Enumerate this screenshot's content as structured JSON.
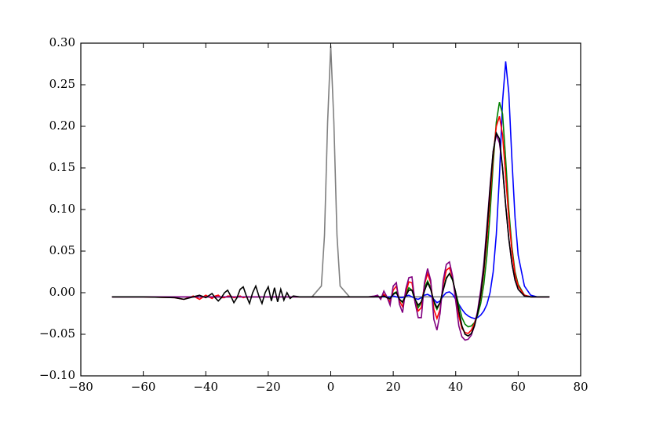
{
  "chart_data": {
    "type": "line",
    "x": [
      -70,
      -60,
      -50,
      -47,
      -44,
      -42,
      -40,
      -38,
      -37,
      -36,
      -35,
      -34,
      -33,
      -32,
      -31,
      -30,
      -29,
      -28,
      -27,
      -26,
      -25,
      -24,
      -23,
      -22,
      -21,
      -20,
      -19,
      -18,
      -17,
      -16,
      -15,
      -14,
      -13,
      -12,
      -10,
      -6,
      -3,
      -2,
      -1,
      0,
      1,
      2,
      3,
      6,
      10,
      12,
      14,
      15,
      16,
      17,
      18,
      19,
      20,
      21,
      22,
      23,
      24,
      25,
      26,
      27,
      28,
      29,
      30,
      31,
      32,
      33,
      34,
      35,
      36,
      37,
      38,
      39,
      40,
      41,
      42,
      43,
      44,
      45,
      46,
      47,
      48,
      49,
      50,
      51,
      52,
      53,
      54,
      55,
      56,
      57,
      58,
      59,
      60,
      62,
      64,
      66,
      70
    ],
    "series": [
      {
        "color": "#808080",
        "values": [
          -0.005,
          -0.005,
          -0.005,
          -0.005,
          -0.005,
          -0.005,
          -0.005,
          -0.005,
          -0.005,
          -0.005,
          -0.005,
          -0.005,
          -0.005,
          -0.005,
          -0.005,
          -0.005,
          -0.005,
          -0.005,
          -0.005,
          -0.005,
          -0.005,
          -0.005,
          -0.005,
          -0.005,
          -0.005,
          -0.005,
          -0.005,
          -0.005,
          -0.005,
          -0.005,
          -0.005,
          -0.005,
          -0.005,
          -0.005,
          -0.005,
          -0.005,
          0.008,
          0.069,
          0.205,
          0.297,
          0.205,
          0.069,
          0.008,
          -0.005,
          -0.005,
          -0.005,
          -0.005,
          -0.005,
          -0.005,
          -0.005,
          -0.005,
          -0.005,
          -0.005,
          -0.005,
          -0.005,
          -0.005,
          -0.005,
          -0.005,
          -0.005,
          -0.005,
          -0.005,
          -0.005,
          -0.005,
          -0.005,
          -0.005,
          -0.005,
          -0.005,
          -0.005,
          -0.005,
          -0.005,
          -0.005,
          -0.005,
          -0.005,
          -0.005,
          -0.005,
          -0.005,
          -0.005,
          -0.005,
          -0.005,
          -0.005,
          -0.005,
          -0.005,
          -0.005,
          -0.005,
          -0.005,
          -0.005,
          -0.005,
          -0.005,
          -0.005,
          -0.005,
          -0.005,
          -0.005,
          -0.005,
          -0.005,
          -0.005,
          -0.005,
          -0.005
        ]
      },
      {
        "color": "#0000ff",
        "values": [
          -0.005,
          -0.005,
          -0.005,
          -0.005,
          -0.005,
          -0.005,
          -0.005,
          -0.005,
          -0.005,
          -0.005,
          -0.005,
          -0.005,
          -0.005,
          -0.005,
          -0.005,
          -0.005,
          -0.005,
          -0.005,
          -0.005,
          -0.005,
          -0.005,
          -0.005,
          -0.005,
          -0.005,
          -0.005,
          -0.005,
          -0.005,
          -0.005,
          -0.005,
          -0.005,
          -0.005,
          -0.005,
          -0.005,
          -0.005,
          -0.005,
          -0.005,
          -0.005,
          -0.005,
          -0.005,
          -0.005,
          -0.005,
          -0.005,
          -0.005,
          -0.005,
          -0.005,
          -0.005,
          -0.005,
          -0.005,
          -0.005,
          -0.005,
          -0.005,
          -0.005,
          -0.004,
          -0.005,
          -0.006,
          -0.006,
          -0.004,
          -0.003,
          -0.005,
          -0.007,
          -0.008,
          -0.006,
          -0.003,
          -0.002,
          -0.004,
          -0.008,
          -0.012,
          -0.01,
          -0.004,
          0.0,
          0.001,
          -0.002,
          -0.008,
          -0.014,
          -0.02,
          -0.025,
          -0.028,
          -0.03,
          -0.031,
          -0.03,
          -0.027,
          -0.022,
          -0.014,
          0.0,
          0.025,
          0.07,
          0.14,
          0.23,
          0.278,
          0.24,
          0.16,
          0.09,
          0.045,
          0.008,
          -0.003,
          -0.005,
          -0.005
        ]
      },
      {
        "color": "#008000",
        "values": [
          -0.005,
          -0.005,
          -0.005,
          -0.005,
          -0.005,
          -0.005,
          -0.005,
          -0.005,
          -0.005,
          -0.005,
          -0.005,
          -0.005,
          -0.005,
          -0.005,
          -0.005,
          -0.005,
          -0.005,
          -0.005,
          -0.005,
          -0.005,
          -0.005,
          -0.005,
          -0.005,
          -0.005,
          -0.005,
          -0.005,
          -0.005,
          -0.005,
          -0.005,
          -0.005,
          -0.005,
          -0.005,
          -0.005,
          -0.005,
          -0.005,
          -0.005,
          -0.005,
          -0.005,
          -0.005,
          -0.005,
          -0.005,
          -0.005,
          -0.005,
          -0.005,
          -0.005,
          -0.005,
          -0.005,
          -0.004,
          -0.006,
          -0.003,
          -0.005,
          -0.008,
          -0.001,
          0.001,
          -0.008,
          -0.012,
          -0.002,
          0.006,
          0.003,
          -0.01,
          -0.018,
          -0.012,
          0.006,
          0.014,
          0.006,
          -0.012,
          -0.02,
          -0.012,
          0.004,
          0.018,
          0.023,
          0.015,
          0.0,
          -0.015,
          -0.03,
          -0.038,
          -0.041,
          -0.04,
          -0.036,
          -0.027,
          -0.013,
          0.01,
          0.045,
          0.095,
          0.155,
          0.205,
          0.229,
          0.215,
          0.16,
          0.1,
          0.055,
          0.025,
          0.01,
          -0.003,
          -0.005,
          -0.005,
          -0.005
        ]
      },
      {
        "color": "#ff0000",
        "values": [
          -0.005,
          -0.005,
          -0.006,
          -0.008,
          -0.004,
          -0.008,
          -0.003,
          -0.007,
          -0.004,
          -0.003,
          -0.006,
          -0.006,
          -0.004,
          -0.004,
          -0.006,
          -0.005,
          -0.004,
          -0.006,
          -0.005,
          -0.005,
          -0.005,
          -0.005,
          -0.005,
          -0.005,
          -0.005,
          -0.005,
          -0.005,
          -0.005,
          -0.005,
          -0.005,
          -0.005,
          -0.005,
          -0.005,
          -0.005,
          -0.005,
          -0.005,
          -0.005,
          -0.005,
          -0.005,
          -0.005,
          -0.005,
          -0.005,
          -0.005,
          -0.005,
          -0.005,
          -0.005,
          -0.005,
          -0.004,
          -0.007,
          -0.002,
          -0.006,
          -0.011,
          0.003,
          0.008,
          -0.01,
          -0.017,
          0.0,
          0.013,
          0.012,
          -0.012,
          -0.022,
          -0.018,
          0.01,
          0.023,
          0.012,
          -0.02,
          -0.031,
          -0.02,
          0.01,
          0.027,
          0.03,
          0.018,
          -0.005,
          -0.028,
          -0.043,
          -0.048,
          -0.049,
          -0.045,
          -0.037,
          -0.024,
          -0.005,
          0.025,
          0.065,
          0.115,
          0.165,
          0.2,
          0.212,
          0.19,
          0.14,
          0.09,
          0.05,
          0.022,
          0.008,
          -0.003,
          -0.005,
          -0.005,
          -0.005
        ]
      },
      {
        "color": "#800080",
        "values": [
          -0.005,
          -0.005,
          -0.005,
          -0.005,
          -0.005,
          -0.005,
          -0.005,
          -0.005,
          -0.005,
          -0.005,
          -0.005,
          -0.005,
          -0.005,
          -0.005,
          -0.005,
          -0.005,
          -0.005,
          -0.005,
          -0.005,
          -0.005,
          -0.005,
          -0.005,
          -0.005,
          -0.005,
          -0.005,
          -0.005,
          -0.005,
          -0.005,
          -0.005,
          -0.005,
          -0.005,
          -0.005,
          -0.005,
          -0.005,
          -0.005,
          -0.005,
          -0.005,
          -0.005,
          -0.005,
          -0.005,
          -0.005,
          -0.005,
          -0.005,
          -0.005,
          -0.005,
          -0.005,
          -0.004,
          -0.003,
          -0.008,
          0.002,
          -0.005,
          -0.015,
          0.008,
          0.012,
          -0.014,
          -0.024,
          0.004,
          0.018,
          0.019,
          -0.012,
          -0.03,
          -0.03,
          0.012,
          0.029,
          0.015,
          -0.032,
          -0.045,
          -0.025,
          0.015,
          0.034,
          0.037,
          0.02,
          -0.01,
          -0.04,
          -0.053,
          -0.057,
          -0.056,
          -0.051,
          -0.04,
          -0.022,
          0.003,
          0.035,
          0.08,
          0.128,
          0.17,
          0.19,
          0.18,
          0.15,
          0.105,
          0.065,
          0.035,
          0.015,
          0.004,
          -0.004,
          -0.005,
          -0.005,
          -0.005
        ]
      },
      {
        "color": "#000000",
        "values": [
          -0.005,
          -0.005,
          -0.006,
          -0.008,
          -0.005,
          -0.003,
          -0.006,
          -0.001,
          -0.006,
          -0.01,
          -0.006,
          0.0,
          0.003,
          -0.004,
          -0.012,
          -0.006,
          0.004,
          0.007,
          -0.004,
          -0.013,
          0.0,
          0.008,
          -0.004,
          -0.013,
          0.0,
          0.007,
          -0.01,
          0.006,
          -0.011,
          0.004,
          -0.009,
          0.0,
          -0.007,
          -0.004,
          -0.005,
          -0.005,
          -0.005,
          -0.005,
          -0.005,
          -0.005,
          -0.005,
          -0.005,
          -0.005,
          -0.005,
          -0.005,
          -0.005,
          -0.005,
          -0.005,
          -0.005,
          -0.004,
          -0.006,
          -0.007,
          -0.002,
          0.0,
          -0.008,
          -0.011,
          -0.004,
          0.003,
          0.003,
          -0.008,
          -0.015,
          -0.011,
          0.002,
          0.012,
          0.004,
          -0.01,
          -0.018,
          -0.012,
          0.003,
          0.017,
          0.023,
          0.016,
          0.0,
          -0.022,
          -0.04,
          -0.05,
          -0.052,
          -0.049,
          -0.04,
          -0.025,
          -0.003,
          0.028,
          0.075,
          0.125,
          0.17,
          0.192,
          0.185,
          0.15,
          0.105,
          0.065,
          0.035,
          0.015,
          0.004,
          -0.004,
          -0.005,
          -0.005,
          -0.005
        ]
      }
    ],
    "xlim": [
      -80,
      80
    ],
    "ylim": [
      -0.1,
      0.3
    ],
    "xticks": [
      {
        "value": -80,
        "label": "−80"
      },
      {
        "value": -60,
        "label": "−60"
      },
      {
        "value": -40,
        "label": "−40"
      },
      {
        "value": -20,
        "label": "−20"
      },
      0,
      20,
      40,
      60,
      80
    ],
    "yticks": [
      {
        "value": -0.1,
        "label": "−0.10"
      },
      {
        "value": -0.05,
        "label": "−0.05"
      },
      {
        "value": 0,
        "label": "0.00"
      },
      0.05,
      {
        "value": 0.1,
        "label": "0.10"
      },
      0.15,
      {
        "value": 0.2,
        "label": "0.20"
      },
      0.25,
      {
        "value": 0.3,
        "label": "0.30"
      }
    ]
  }
}
